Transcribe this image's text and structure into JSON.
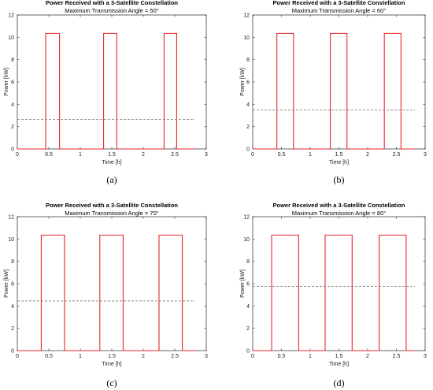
{
  "chart_data": [
    {
      "type": "line",
      "title": "Power Received with a 3-Satellite Constellation",
      "subtitle": "Maximum Transmission Angle = 50°",
      "xlabel": "Time [h]",
      "ylabel": "Power [kW]",
      "xlim": [
        0,
        3
      ],
      "ylim": [
        0,
        12
      ],
      "xticks": [
        "0",
        "0.5",
        "1",
        "1.5",
        "2",
        "2.5",
        "3"
      ],
      "yticks": [
        "0",
        "2",
        "4",
        "6",
        "8",
        "10",
        "12"
      ],
      "grid": false,
      "caption": "(a)",
      "series": [
        {
          "style": "solid",
          "color": "#e8262b",
          "x": [
            0,
            0.45,
            0.45,
            0.67,
            0.67,
            1.37,
            1.37,
            1.58,
            1.58,
            2.33,
            2.33,
            2.53,
            2.53,
            2.82
          ],
          "y": [
            0,
            0,
            10.35,
            10.35,
            0,
            0,
            10.35,
            10.35,
            0,
            0,
            10.35,
            10.35,
            0,
            0
          ]
        },
        {
          "style": "dashed",
          "color": "#808080",
          "x": [
            0,
            2.82
          ],
          "y": [
            2.65,
            2.65
          ]
        }
      ]
    },
    {
      "type": "line",
      "title": "Power Received with a 3-Satellite Constellation",
      "subtitle": "Maximum Transmission Angle = 60°",
      "xlabel": "Time [h]",
      "ylabel": "Power [kW]",
      "xlim": [
        0,
        3
      ],
      "ylim": [
        0,
        12
      ],
      "xticks": [
        "0",
        "0.5",
        "1",
        "1.5",
        "2",
        "2.5",
        "3"
      ],
      "yticks": [
        "0",
        "2",
        "4",
        "6",
        "8",
        "10",
        "12"
      ],
      "grid": false,
      "caption": "(b)",
      "series": [
        {
          "style": "solid",
          "color": "#e8262b",
          "x": [
            0,
            0.42,
            0.42,
            0.71,
            0.71,
            1.35,
            1.35,
            1.64,
            1.64,
            2.29,
            2.29,
            2.58,
            2.58,
            2.82
          ],
          "y": [
            0,
            0,
            10.35,
            10.35,
            0,
            0,
            10.35,
            10.35,
            0,
            0,
            10.35,
            10.35,
            0,
            0
          ]
        },
        {
          "style": "dashed",
          "color": "#808080",
          "x": [
            0,
            2.82
          ],
          "y": [
            3.48,
            3.48
          ]
        }
      ]
    },
    {
      "type": "line",
      "title": "Power Received with a 3-Satellite Constellation",
      "subtitle": "Maximum Transmission Angle = 70°",
      "xlabel": "Time [h]",
      "ylabel": "Power [kW]",
      "xlim": [
        0,
        3
      ],
      "ylim": [
        0,
        12
      ],
      "xticks": [
        "0",
        "0.5",
        "1",
        "1.5",
        "2",
        "2.5",
        "3"
      ],
      "yticks": [
        "0",
        "2",
        "4",
        "6",
        "8",
        "10",
        "12"
      ],
      "grid": false,
      "caption": "(c)",
      "series": [
        {
          "style": "solid",
          "color": "#e8262b",
          "x": [
            0,
            0.38,
            0.38,
            0.75,
            0.75,
            1.31,
            1.31,
            1.68,
            1.68,
            2.25,
            2.25,
            2.62,
            2.62,
            2.82
          ],
          "y": [
            0,
            0,
            10.35,
            10.35,
            0,
            0,
            10.35,
            10.35,
            0,
            0,
            10.35,
            10.35,
            0,
            0
          ]
        },
        {
          "style": "dashed",
          "color": "#808080",
          "x": [
            0,
            2.82
          ],
          "y": [
            4.45,
            4.45
          ]
        }
      ]
    },
    {
      "type": "line",
      "title": "Power Received with a 3-Satellite Constellation",
      "subtitle": "Maximum Transmission Angle = 80°",
      "xlabel": "Time [h]",
      "ylabel": "Power [kW]",
      "xlim": [
        0,
        3
      ],
      "ylim": [
        0,
        12
      ],
      "xticks": [
        "0",
        "0.5",
        "1",
        "1.5",
        "2",
        "2.5",
        "3"
      ],
      "yticks": [
        "0",
        "2",
        "4",
        "6",
        "8",
        "10",
        "12"
      ],
      "grid": false,
      "caption": "(d)",
      "series": [
        {
          "style": "solid",
          "color": "#e8262b",
          "x": [
            0,
            0.33,
            0.33,
            0.8,
            0.8,
            1.26,
            1.26,
            1.73,
            1.73,
            2.2,
            2.2,
            2.67,
            2.67,
            2.82
          ],
          "y": [
            0,
            0,
            10.35,
            10.35,
            0,
            0,
            10.35,
            10.35,
            0,
            0,
            10.35,
            10.35,
            0,
            0
          ]
        },
        {
          "style": "dashed",
          "color": "#808080",
          "x": [
            0,
            2.82
          ],
          "y": [
            5.75,
            5.75
          ]
        }
      ]
    }
  ]
}
